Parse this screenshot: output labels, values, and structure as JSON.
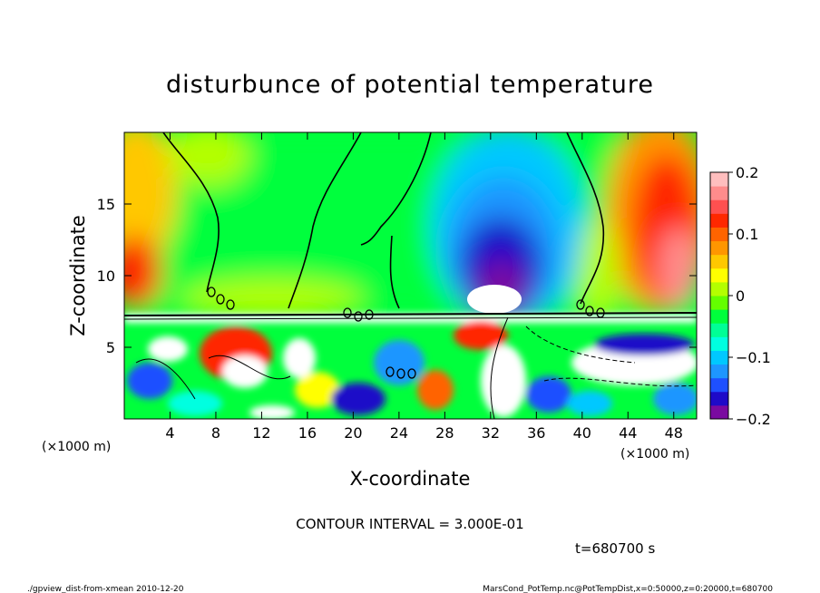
{
  "chart_data": {
    "type": "heatmap",
    "title": "disturbunce of potential temperature",
    "xlabel": "X-coordinate",
    "ylabel": "Z-coordinate",
    "x_unit_left": "(×1000 m)",
    "x_unit_right": "(×1000 m)",
    "xlim": [
      0,
      50
    ],
    "ylim": [
      0,
      20
    ],
    "x_ticks": [
      "4",
      "8",
      "12",
      "16",
      "20",
      "24",
      "28",
      "32",
      "36",
      "40",
      "44",
      "48"
    ],
    "x_tick_values": [
      4,
      8,
      12,
      16,
      20,
      24,
      28,
      32,
      36,
      40,
      44,
      48
    ],
    "y_ticks": [
      "5",
      "10",
      "15"
    ],
    "y_tick_values": [
      5,
      10,
      15
    ],
    "colorbar": {
      "min": -0.2,
      "max": 0.2,
      "labels": [
        "0.2",
        "0.1",
        "0",
        "−0.1",
        "−0.2"
      ],
      "label_values": [
        0.2,
        0.1,
        0,
        -0.1,
        -0.2
      ],
      "colors": [
        "#7a0aa0",
        "#1e0ac8",
        "#1e50ff",
        "#1e96ff",
        "#00c8ff",
        "#00ffe0",
        "#00ff96",
        "#00ff3c",
        "#64ff00",
        "#b4ff00",
        "#ffff00",
        "#ffc800",
        "#ff9600",
        "#ff6400",
        "#ff2800",
        "#ff5050",
        "#ff8c8c",
        "#ffbebe"
      ]
    },
    "contour_interval": "CONTOUR INTERVAL = 3.000E-01",
    "time": "t=680700 s",
    "upper_layer": {
      "z_range": [
        7.5,
        20
      ],
      "features": [
        {
          "kind": "warm-max",
          "x_center": 1.5,
          "z_center": 10,
          "value": 0.15
        },
        {
          "kind": "warm-max",
          "x_center": 48,
          "z_center": 11,
          "value": 0.19
        },
        {
          "kind": "cold-min",
          "x_center": 32.5,
          "z_center": 9.5,
          "value": -0.2
        }
      ]
    }
  },
  "footer": {
    "left": "./gpview_dist-from-xmean  2010-12-20",
    "right": "MarsCond_PotTemp.nc@PotTempDist,x=0:50000,z=0:20000,t=680700"
  }
}
